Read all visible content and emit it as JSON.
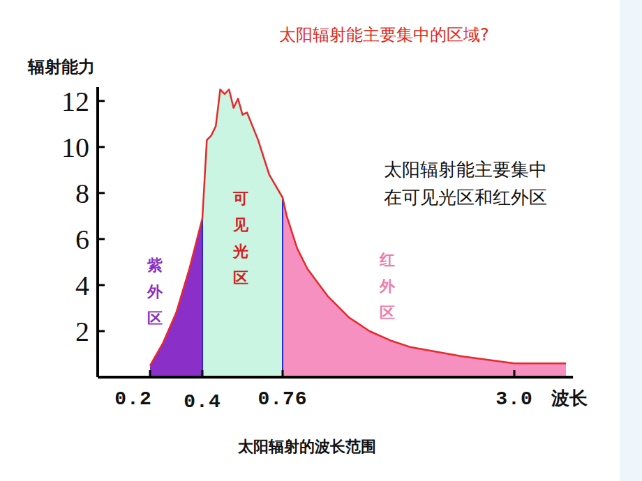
{
  "chart_data": {
    "type": "area",
    "title": "太阳辐射能主要集中的区域?",
    "annotation": [
      "太阳辐射能主要集中",
      "在可见光区和红外区"
    ],
    "y_label": "辐射能力",
    "x_label": "波长",
    "caption": "太阳辐射的波长范围",
    "x": [
      0.2,
      0.25,
      0.3,
      0.35,
      0.4,
      0.42,
      0.44,
      0.46,
      0.48,
      0.5,
      0.52,
      0.54,
      0.56,
      0.58,
      0.6,
      0.65,
      0.7,
      0.76,
      0.8,
      0.9,
      1.0,
      1.2,
      1.4,
      1.6,
      1.8,
      2.0,
      2.5,
      3.0,
      3.5
    ],
    "values": [
      0.5,
      1.5,
      2.8,
      4.7,
      6.9,
      10.3,
      10.5,
      10.9,
      12.5,
      12.3,
      12.5,
      11.7,
      12.1,
      11.4,
      11.5,
      10.3,
      8.8,
      7.8,
      7.0,
      5.6,
      4.7,
      3.5,
      2.6,
      2.0,
      1.6,
      1.3,
      0.9,
      0.6,
      0.6
    ],
    "color": "#e8282a",
    "regions": [
      {
        "label": "紫外区",
        "from": 0.2,
        "to": 0.4,
        "color": "#8b2fc9"
      },
      {
        "label": "可见光区",
        "from": 0.4,
        "to": 0.76,
        "color": "#c9f5e2"
      },
      {
        "label": "红外区",
        "from": 0.76,
        "to": 3.5,
        "color": "#f590c0"
      }
    ],
    "xlim": [
      0,
      3.5
    ],
    "ylim": [
      0,
      12.6
    ],
    "xticks": [
      0.2,
      0.4,
      0.76,
      {
        "value": 3,
        "label": "3.0"
      }
    ],
    "yticks": [
      2,
      4,
      6,
      8,
      10,
      12
    ],
    "grid": false
  }
}
